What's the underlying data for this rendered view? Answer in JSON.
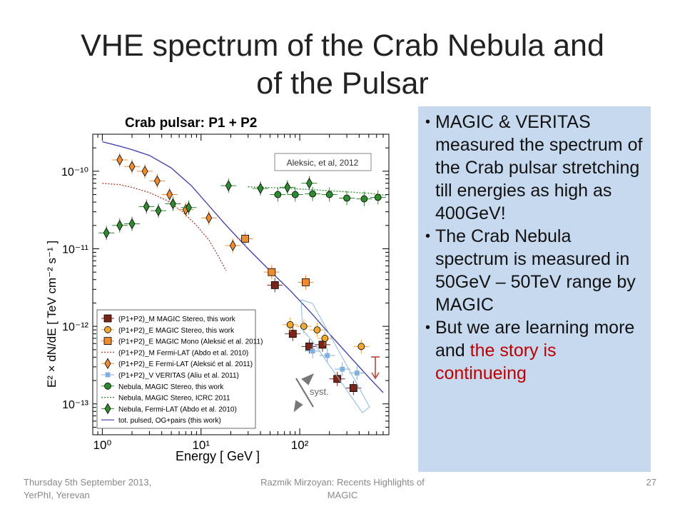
{
  "slide": {
    "title_line1": "VHE spectrum of the Crab Nebula and",
    "title_line2": "of the Pulsar"
  },
  "bullets": [
    {
      "text": "MAGIC & VERITAS measured the spectrum of the Crab pulsar stretching till energies as high as 400GeV!"
    },
    {
      "text": "The Crab Nebula spectrum is measured in 50GeV – 50TeV range by MAGIC"
    },
    {
      "text_plain": "But we are learning more and ",
      "text_highlight": "the story is continueing",
      "highlight_color": "#c00000"
    }
  ],
  "footer": {
    "left_line1": "Thursday 5th September 2013,",
    "left_line2": "YerPhI, Yerevan",
    "center_line1": "Razmik Mirzoyan: Recents Highlights of",
    "center_line2": "MAGIC",
    "page": "27"
  },
  "chart_data": {
    "type": "scatter",
    "title": "Crab pulsar: P1 + P2",
    "xlabel": "Energy [ GeV ]",
    "ylabel": "E² × dN/dE [ TeV cm⁻² s⁻¹ ]",
    "xscale": "log",
    "yscale": "log",
    "xlim": [
      0.8,
      800
    ],
    "ylim": [
      4e-14,
      3e-10
    ],
    "xticks": [
      {
        "value": 1,
        "label": "10⁰"
      },
      {
        "value": 10,
        "label": "10¹"
      },
      {
        "value": 100,
        "label": "10²"
      }
    ],
    "yticks": [
      {
        "value": 1e-13,
        "label": "10⁻¹³"
      },
      {
        "value": 1e-12,
        "label": "10⁻¹²"
      },
      {
        "value": 1e-11,
        "label": "10⁻¹¹"
      },
      {
        "value": 1e-10,
        "label": "10⁻¹⁰"
      }
    ],
    "annotation": "Aleksic, et al, 2012",
    "syst_label": "syst.",
    "legend_position": "bottom-left",
    "series": [
      {
        "name": "(P1+P2)_M MAGIC Stereo, this work",
        "marker": "square",
        "color": "#7b2418",
        "points": [
          [
            56,
            3.4e-12
          ],
          [
            85,
            8e-13
          ],
          [
            125,
            5.5e-13
          ],
          [
            170,
            5.8e-13
          ],
          [
            240,
            2.1e-13
          ],
          [
            350,
            1.6e-13
          ]
        ]
      },
      {
        "name": "(P1+P2)_E MAGIC Stereo, this work",
        "marker": "circle",
        "color": "#f0a830",
        "points": [
          [
            80,
            1.05e-12
          ],
          [
            110,
            1e-12
          ],
          [
            150,
            9e-13
          ],
          [
            180,
            7e-13
          ],
          [
            420,
            5.5e-13
          ]
        ]
      },
      {
        "name": "(P1+P2)_E MAGIC Mono (Aleksić et al. 2011)",
        "marker": "square",
        "color": "#f08c30",
        "points": [
          [
            28,
            1.35e-11
          ],
          [
            52,
            5e-12
          ],
          [
            115,
            3.7e-12
          ]
        ]
      },
      {
        "name": "(P1+P2)_E Fermi-LAT (Aleksić et al. 2011)",
        "marker": "diamond",
        "color": "#f08c30",
        "points": [
          [
            1.5,
            1.4e-10
          ],
          [
            2.0,
            1.15e-10
          ],
          [
            2.7,
            1e-10
          ],
          [
            3.6,
            7.5e-11
          ],
          [
            4.8,
            5e-11
          ],
          [
            7.0,
            3.2e-11
          ],
          [
            12,
            2.5e-11
          ],
          [
            21,
            1.1e-11
          ]
        ]
      },
      {
        "name": "(P1+P2)_V VERITAS (Aliu et al. 2011)",
        "marker": "square-small",
        "color": "#7fb0e0",
        "points": [
          [
            135,
            4.8e-13
          ],
          [
            190,
            4.2e-13
          ],
          [
            270,
            2.8e-13
          ],
          [
            380,
            2.5e-13
          ]
        ]
      },
      {
        "name": "Nebula, MAGIC Stereo, this work",
        "marker": "circle",
        "color": "#2e8b30",
        "points": [
          [
            60,
            5e-11
          ],
          [
            90,
            5e-11
          ],
          [
            135,
            5.1e-11
          ],
          [
            200,
            5e-11
          ],
          [
            300,
            4.5e-11
          ],
          [
            450,
            4.4e-11
          ],
          [
            620,
            4.6e-11
          ]
        ]
      },
      {
        "name": "Nebula, Fermi-LAT (Abdo et al. 2010)",
        "marker": "diamond",
        "color": "#2e8b30",
        "points": [
          [
            1.1,
            1.6e-11
          ],
          [
            1.5,
            2e-11
          ],
          [
            2.0,
            2.1e-11
          ],
          [
            2.8,
            3.5e-11
          ],
          [
            3.7,
            3.1e-11
          ],
          [
            5.2,
            3.8e-11
          ],
          [
            7.5,
            3.4e-11
          ],
          [
            19,
            6.5e-11
          ],
          [
            40,
            6e-11
          ],
          [
            75,
            6.2e-11
          ],
          [
            125,
            7e-11
          ]
        ]
      }
    ],
    "lines": [
      {
        "name": "(P1+P2)_M Fermi-LAT (Abdo et al. 2010)",
        "style": "dotted",
        "color": "#b03a2e",
        "points": [
          [
            1,
            7e-11
          ],
          [
            1.5,
            6.7e-11
          ],
          [
            2,
            6.2e-11
          ],
          [
            3,
            5.3e-11
          ],
          [
            4.5,
            4.2e-11
          ],
          [
            6.5,
            3e-11
          ],
          [
            9,
            2e-11
          ],
          [
            12,
            1.3e-11
          ],
          [
            15,
            8e-12
          ],
          [
            18,
            5.2e-12
          ]
        ]
      },
      {
        "name": "Nebula, MAGIC Stereo, ICRC 2011",
        "style": "dotted",
        "color": "#2e8b30",
        "points": [
          [
            30,
            6.3e-11
          ],
          [
            80,
            6e-11
          ],
          [
            200,
            5.6e-11
          ],
          [
            500,
            5.2e-11
          ],
          [
            750,
            4.9e-11
          ]
        ]
      },
      {
        "name": "tot. pulsed, OG+pairs (this work)",
        "style": "solid",
        "color": "#3a3aa8",
        "points": [
          [
            1,
            2.4e-10
          ],
          [
            1.5,
            2.1e-10
          ],
          [
            2,
            1.9e-10
          ],
          [
            3,
            1.6e-10
          ],
          [
            5,
            1.1e-10
          ],
          [
            8,
            6.5e-11
          ],
          [
            12,
            3.6e-11
          ],
          [
            18,
            2e-11
          ],
          [
            30,
            1e-11
          ],
          [
            50,
            5.2e-12
          ],
          [
            80,
            2.9e-12
          ],
          [
            130,
            1.5e-12
          ],
          [
            200,
            8e-13
          ],
          [
            300,
            4.5e-13
          ],
          [
            500,
            2.2e-13
          ],
          [
            700,
            1.4e-13
          ]
        ]
      }
    ]
  }
}
